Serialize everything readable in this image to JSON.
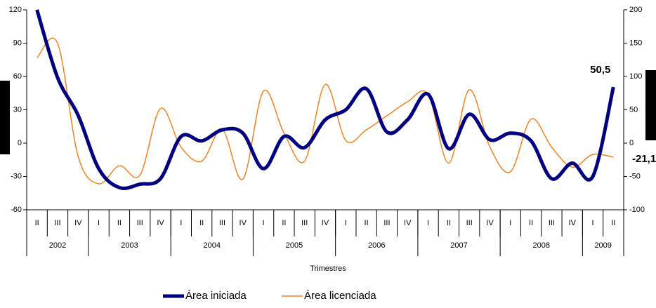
{
  "chart_data": {
    "type": "line",
    "x_label": "Trimestres",
    "categories": [
      "II",
      "III",
      "IV",
      "I",
      "II",
      "III",
      "IV",
      "I",
      "II",
      "III",
      "IV",
      "I",
      "II",
      "III",
      "IV",
      "I",
      "II",
      "III",
      "IV",
      "I",
      "II",
      "III",
      "IV",
      "I",
      "II",
      "III",
      "IV",
      "I",
      "II"
    ],
    "category_groups": [
      {
        "label": "2002",
        "span": 3
      },
      {
        "label": "2003",
        "span": 4
      },
      {
        "label": "2004",
        "span": 4
      },
      {
        "label": "2005",
        "span": 4
      },
      {
        "label": "2006",
        "span": 4
      },
      {
        "label": "2007",
        "span": 4
      },
      {
        "label": "2008",
        "span": 4
      },
      {
        "label": "2009",
        "span": 2
      }
    ],
    "series": [
      {
        "name": "Área iniciada",
        "color": "#000080",
        "axis": "y",
        "values": [
          120,
          59,
          25,
          -23,
          -40,
          -37,
          -32,
          6,
          2,
          12,
          9,
          -23,
          6,
          -4,
          21,
          30,
          49,
          10,
          21,
          44,
          -5,
          26,
          3,
          9,
          2,
          -32,
          -18,
          -30,
          50.5
        ],
        "value_labels": [
          null,
          null,
          null,
          null,
          null,
          null,
          null,
          null,
          null,
          null,
          null,
          null,
          null,
          null,
          null,
          null,
          null,
          null,
          null,
          null,
          null,
          null,
          null,
          null,
          null,
          null,
          null,
          null,
          "50,5"
        ]
      },
      {
        "name": "Área licenciada",
        "color": "#f58220",
        "axis": "y2",
        "values": [
          128,
          150,
          -20,
          -61,
          -34,
          -48,
          52,
          -6,
          -27,
          20,
          -54,
          78,
          15,
          -27,
          88,
          4,
          20,
          41,
          62,
          73,
          -30,
          80,
          -6,
          -43,
          36,
          -6,
          -36,
          -17,
          -21.1
        ],
        "value_labels": [
          null,
          null,
          null,
          null,
          null,
          null,
          null,
          null,
          null,
          null,
          null,
          null,
          null,
          null,
          null,
          null,
          null,
          null,
          null,
          null,
          null,
          null,
          null,
          null,
          null,
          null,
          null,
          null,
          "-21,1"
        ]
      }
    ],
    "ylim": [
      -60,
      120
    ],
    "yticks": [
      -60,
      -30,
      0,
      30,
      60,
      90,
      120
    ],
    "y2lim": [
      -100,
      200
    ],
    "y2ticks": [
      -100,
      -50,
      0,
      50,
      100,
      150,
      200
    ],
    "grid": false,
    "legend": "bottom"
  }
}
